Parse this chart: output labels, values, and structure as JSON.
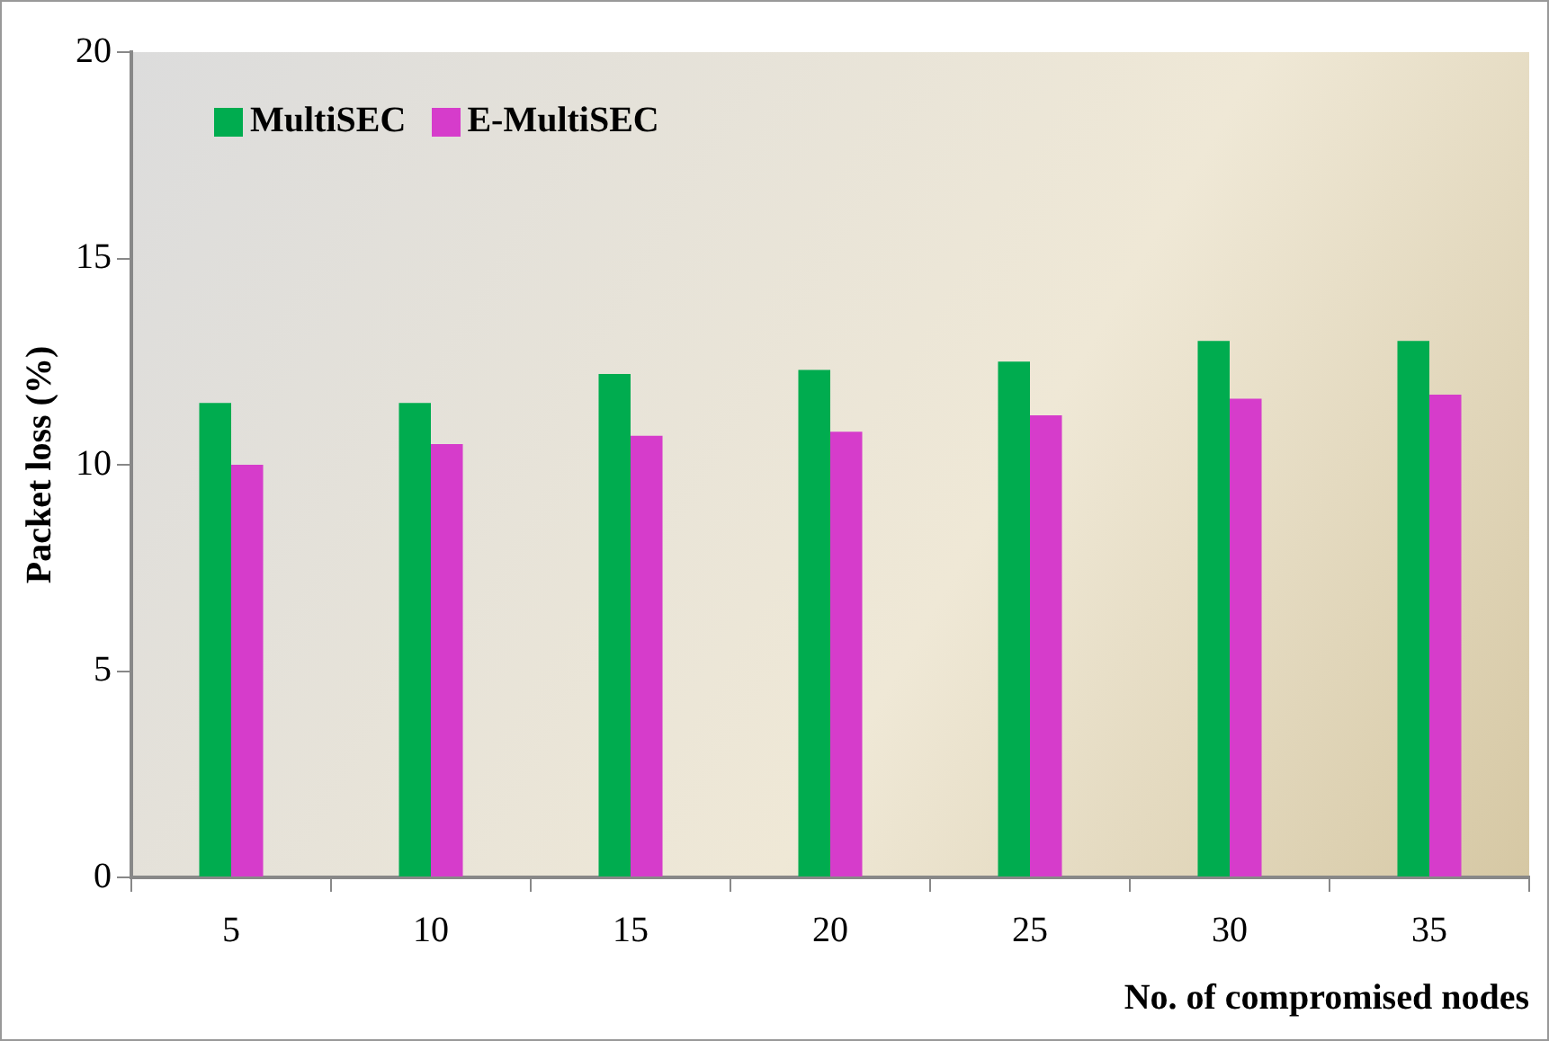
{
  "chart_data": {
    "type": "bar",
    "xlabel": "No. of compromised nodes",
    "ylabel": "Packet loss (%)",
    "categories": [
      "5",
      "10",
      "15",
      "20",
      "25",
      "30",
      "35"
    ],
    "series": [
      {
        "name": "MultiSEC",
        "color": "#00ac4f",
        "values": [
          11.5,
          11.5,
          12.2,
          12.3,
          12.5,
          13.0,
          13.0
        ]
      },
      {
        "name": "E-MultiSEC",
        "color": "#d63ccb",
        "values": [
          10.0,
          10.5,
          10.7,
          10.8,
          11.2,
          11.6,
          11.7
        ]
      }
    ],
    "ylim": [
      0,
      20
    ],
    "yticks": [
      0,
      5,
      10,
      15,
      20
    ],
    "grid": false,
    "legend": "top left"
  }
}
